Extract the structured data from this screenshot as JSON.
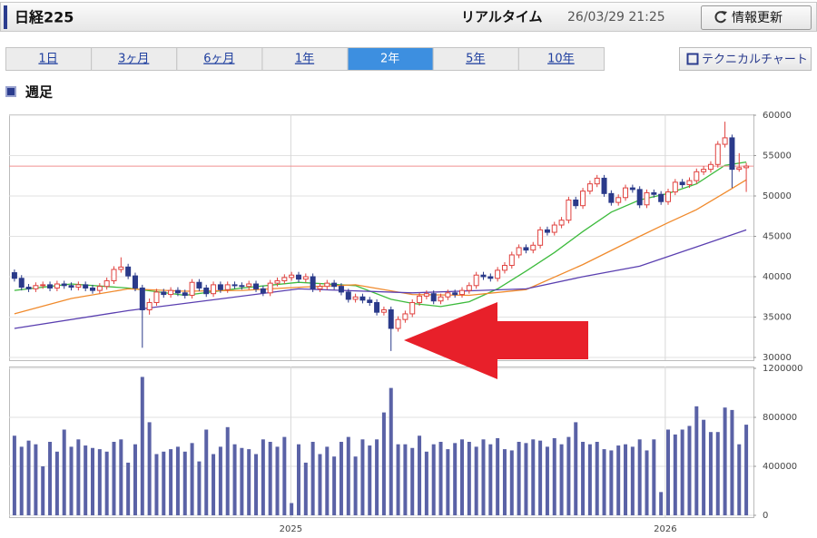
{
  "header": {
    "title": "日経225",
    "status": "リアルタイム",
    "datetime": "26/03/29 21:25",
    "refresh": "情報更新"
  },
  "tabs": [
    "1日",
    "3ヶ月",
    "6ヶ月",
    "1年",
    "2年",
    "5年",
    "10年"
  ],
  "active_tab": 4,
  "tech_button": "テクニカルチャート",
  "section_title": "週足",
  "chart_data": [
    {
      "type": "candlestick",
      "up_color": "#e0413e",
      "down_color": "#2a3a8a",
      "last_line_color": "#f09090",
      "xlim": [
        -0.5,
        103.5
      ],
      "ylim": [
        30000,
        60000
      ],
      "yticks": [
        30000,
        35000,
        40000,
        45000,
        50000,
        55000,
        60000
      ],
      "grid": true,
      "open": [
        40500,
        39800,
        38700,
        38500,
        38900,
        39000,
        38600,
        39100,
        38900,
        38700,
        39000,
        38600,
        38300,
        38800,
        39500,
        40900,
        41200,
        40100,
        38600,
        35900,
        36800,
        38100,
        37800,
        38300,
        38000,
        37700,
        39300,
        38600,
        37900,
        39000,
        38400,
        39000,
        38900,
        38800,
        39100,
        38500,
        38000,
        39200,
        39500,
        39900,
        40200,
        39700,
        40000,
        38500,
        38800,
        39200,
        38800,
        38100,
        37200,
        37500,
        37100,
        36800,
        35600,
        35900,
        33600,
        34700,
        35400,
        36800,
        37600,
        37900,
        37000,
        37500,
        38000,
        37800,
        38300,
        38900,
        40200,
        40000,
        39800,
        40800,
        41400,
        42700,
        43600,
        43300,
        43900,
        45800,
        45500,
        46400,
        47000,
        49500,
        48800,
        50600,
        51500,
        52200,
        50300,
        49200,
        49800,
        51000,
        50800,
        48900,
        50400,
        50200,
        49300,
        50500,
        51700,
        51400,
        51900,
        53000,
        53300,
        53900,
        56400,
        57200,
        53300,
        53500
      ],
      "high": [
        40900,
        40200,
        39100,
        39300,
        39400,
        39400,
        39500,
        39500,
        39300,
        39400,
        39400,
        39000,
        39200,
        39900,
        41300,
        42400,
        41600,
        40500,
        39000,
        37300,
        38500,
        38500,
        38700,
        38700,
        38400,
        39700,
        39700,
        39000,
        39400,
        39400,
        39400,
        39400,
        39300,
        39500,
        39500,
        38900,
        39600,
        39900,
        40300,
        40600,
        40600,
        40400,
        40400,
        39200,
        39600,
        39600,
        39200,
        38500,
        37900,
        37900,
        37500,
        37200,
        36300,
        36300,
        35100,
        35800,
        37200,
        38000,
        38300,
        38300,
        37900,
        38400,
        38400,
        38700,
        39300,
        40600,
        40600,
        40400,
        41200,
        41800,
        43100,
        44000,
        44000,
        44300,
        46200,
        46200,
        46800,
        47400,
        49900,
        49900,
        51000,
        51900,
        52600,
        52600,
        50700,
        50200,
        51400,
        51400,
        51200,
        50800,
        50800,
        50600,
        50900,
        52100,
        52100,
        52300,
        53400,
        53700,
        54300,
        56800,
        59200,
        57600,
        55300,
        54100
      ],
      "low": [
        39400,
        38300,
        38100,
        38100,
        38500,
        38200,
        38200,
        38500,
        38300,
        38300,
        38200,
        37900,
        37900,
        38400,
        39100,
        40500,
        39700,
        38200,
        31200,
        35300,
        36400,
        37400,
        37400,
        37600,
        37300,
        37300,
        38200,
        37500,
        37500,
        38000,
        38000,
        38500,
        38400,
        38400,
        38100,
        37600,
        37600,
        38800,
        39100,
        39500,
        39300,
        39300,
        38100,
        38100,
        38400,
        38400,
        37700,
        36800,
        36800,
        36700,
        36400,
        35200,
        35200,
        30800,
        33200,
        34300,
        35000,
        36400,
        37200,
        36600,
        36600,
        37100,
        37400,
        37400,
        37900,
        38500,
        39600,
        39400,
        39400,
        40400,
        41000,
        42300,
        42900,
        42900,
        43500,
        45100,
        45100,
        46000,
        46600,
        48400,
        48400,
        50200,
        51100,
        49900,
        48800,
        48800,
        49400,
        50400,
        48500,
        48500,
        49800,
        48900,
        48900,
        50100,
        51000,
        51000,
        51500,
        52600,
        52900,
        53500,
        56000,
        51000,
        53000,
        50500
      ],
      "close": [
        39800,
        38700,
        38500,
        38900,
        39000,
        38600,
        39100,
        38900,
        38700,
        39000,
        38600,
        38300,
        38800,
        39500,
        40900,
        41200,
        40100,
        38600,
        35900,
        36800,
        38100,
        37800,
        38300,
        38000,
        37700,
        39300,
        38600,
        37900,
        39000,
        38400,
        39000,
        38900,
        38800,
        39100,
        38500,
        38000,
        39200,
        39500,
        39900,
        40200,
        39700,
        40000,
        38500,
        38800,
        39200,
        38800,
        38100,
        37200,
        37500,
        37100,
        36800,
        35600,
        35900,
        33600,
        34700,
        35400,
        36800,
        37600,
        37900,
        37000,
        37500,
        38000,
        37800,
        38300,
        38900,
        40200,
        40000,
        39800,
        40800,
        41400,
        42700,
        43600,
        43300,
        43900,
        45800,
        45500,
        46400,
        47000,
        49500,
        48800,
        50600,
        51500,
        52200,
        50300,
        49200,
        49800,
        51000,
        50800,
        48900,
        50400,
        50200,
        49300,
        50500,
        51700,
        51400,
        51900,
        53000,
        53300,
        53900,
        56400,
        57200,
        53300,
        53500,
        53700
      ],
      "series": [
        {
          "color": "#3dbb3d",
          "x": [
            0,
            8,
            16,
            24,
            32,
            40,
            48,
            53,
            56,
            60,
            64,
            68,
            72,
            76,
            80,
            84,
            88,
            92,
            96,
            100,
            103
          ],
          "values": [
            38300,
            39100,
            38600,
            37700,
            38600,
            39300,
            38900,
            37200,
            36700,
            36300,
            36900,
            38500,
            40700,
            43000,
            45600,
            48000,
            49500,
            50300,
            51500,
            53800,
            54200
          ]
        },
        {
          "color": "#f08a2c",
          "x": [
            0,
            8,
            16,
            24,
            32,
            40,
            48,
            56,
            64,
            72,
            80,
            88,
            92,
            96,
            100,
            103
          ],
          "values": [
            35400,
            37300,
            38500,
            38200,
            38300,
            38700,
            39000,
            37800,
            37700,
            38400,
            41500,
            45000,
            46700,
            48300,
            50400,
            52000
          ]
        },
        {
          "color": "#5a3fb0",
          "x": [
            0,
            16,
            40,
            56,
            72,
            80,
            88,
            96,
            103
          ],
          "values": [
            33600,
            35800,
            38500,
            38000,
            38500,
            40000,
            41300,
            43700,
            45800
          ]
        }
      ]
    },
    {
      "type": "bar",
      "color": "#5a62a6",
      "xlim": [
        -0.5,
        103.5
      ],
      "xticks": [
        {
          "value": 38.9,
          "label": "2025"
        },
        {
          "value": 91.6,
          "label": "2026"
        }
      ],
      "ylim": [
        0,
        1200000
      ],
      "yticks": [
        0,
        400000,
        800000,
        1200000
      ],
      "grid": true,
      "values": [
        650000,
        560000,
        610000,
        580000,
        400000,
        600000,
        520000,
        700000,
        560000,
        620000,
        570000,
        550000,
        540000,
        520000,
        600000,
        620000,
        430000,
        580000,
        1130000,
        760000,
        500000,
        520000,
        540000,
        560000,
        520000,
        590000,
        440000,
        700000,
        500000,
        560000,
        720000,
        580000,
        550000,
        540000,
        500000,
        620000,
        600000,
        560000,
        640000,
        100000,
        580000,
        430000,
        600000,
        500000,
        560000,
        480000,
        600000,
        640000,
        480000,
        620000,
        570000,
        620000,
        840000,
        1040000,
        580000,
        580000,
        550000,
        650000,
        520000,
        580000,
        600000,
        540000,
        590000,
        620000,
        600000,
        560000,
        620000,
        580000,
        630000,
        540000,
        530000,
        600000,
        590000,
        620000,
        610000,
        560000,
        630000,
        580000,
        640000,
        760000,
        600000,
        580000,
        600000,
        540000,
        530000,
        570000,
        580000,
        560000,
        620000,
        530000,
        620000,
        190000,
        700000,
        660000,
        700000,
        730000,
        890000,
        780000,
        680000,
        680000,
        880000,
        860000,
        580000,
        740000
      ]
    }
  ]
}
